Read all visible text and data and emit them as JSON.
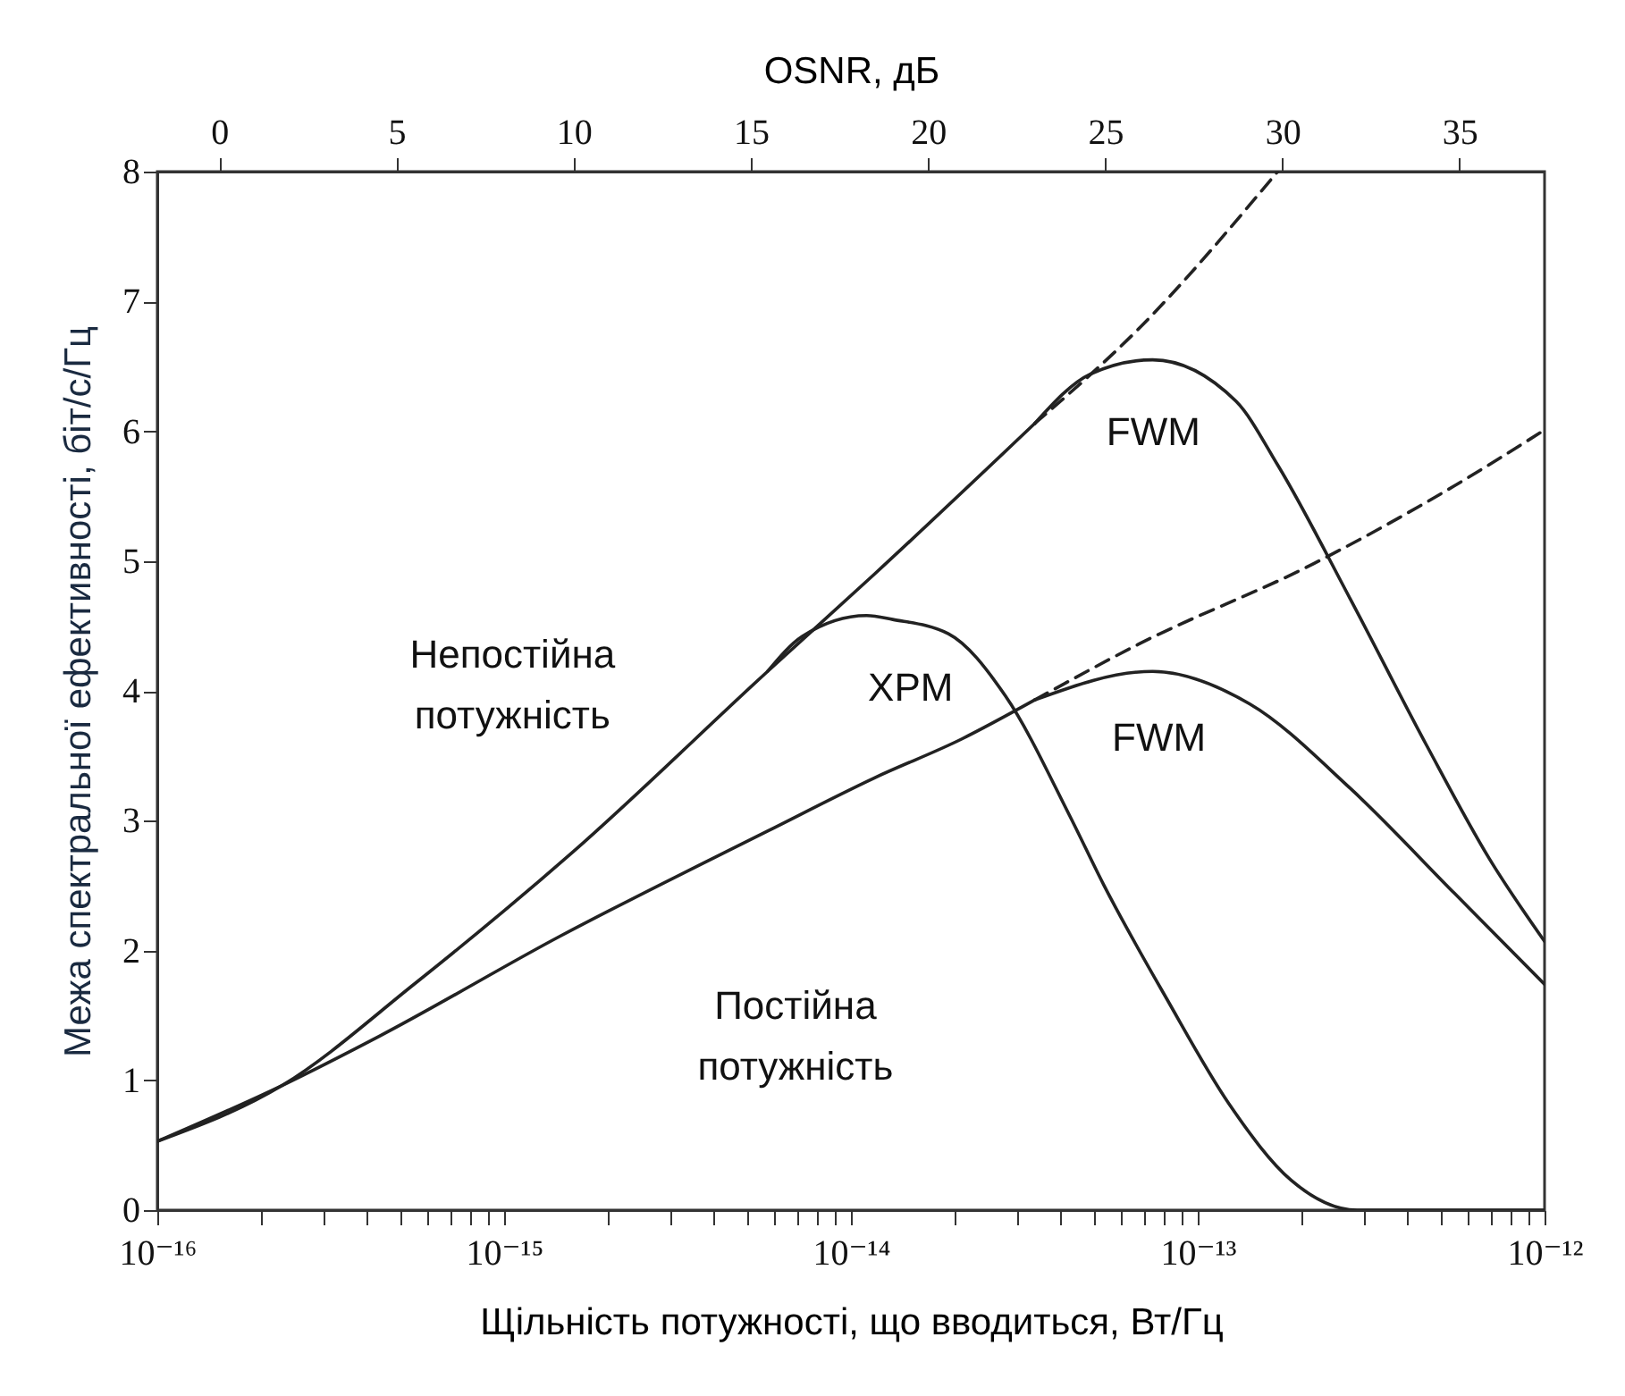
{
  "chart_data": {
    "type": "line",
    "xlabel": "Щільність потужності, що вводиться, Вт/Гц",
    "ylabel": "Межа спектральної ефективності, біт/с/Гц",
    "x2label": "OSNR, дБ",
    "log": "x",
    "xlim": [
      1e-16,
      1e-12
    ],
    "ylim": [
      0,
      8
    ],
    "x2lim": [
      -1.75,
      37.4
    ],
    "xticks": [
      {
        "value": 1e-16,
        "label": "10⁻¹⁶"
      },
      {
        "value": 2e-16,
        "label": null
      },
      {
        "value": 3e-16,
        "label": null
      },
      {
        "value": 4e-16,
        "label": null
      },
      {
        "value": 5e-16,
        "label": null
      },
      {
        "value": 6e-16,
        "label": null
      },
      {
        "value": 7e-16,
        "label": null
      },
      {
        "value": 8e-16,
        "label": null
      },
      {
        "value": 9e-16,
        "label": null
      },
      {
        "value": 1e-15,
        "label": "10⁻¹⁵"
      },
      {
        "value": 2e-15,
        "label": null
      },
      {
        "value": 3e-15,
        "label": null
      },
      {
        "value": 4e-15,
        "label": null
      },
      {
        "value": 5e-15,
        "label": null
      },
      {
        "value": 6e-15,
        "label": null
      },
      {
        "value": 7e-15,
        "label": null
      },
      {
        "value": 8e-15,
        "label": null
      },
      {
        "value": 9e-15,
        "label": null
      },
      {
        "value": 1e-14,
        "label": "10⁻¹⁴"
      },
      {
        "value": 2e-14,
        "label": null
      },
      {
        "value": 3e-14,
        "label": null
      },
      {
        "value": 4e-14,
        "label": null
      },
      {
        "value": 5e-14,
        "label": null
      },
      {
        "value": 6e-14,
        "label": null
      },
      {
        "value": 7e-14,
        "label": null
      },
      {
        "value": 8e-14,
        "label": null
      },
      {
        "value": 9e-14,
        "label": null
      },
      {
        "value": 1e-13,
        "label": "10⁻¹³"
      },
      {
        "value": 2e-13,
        "label": null
      },
      {
        "value": 3e-13,
        "label": null
      },
      {
        "value": 4e-13,
        "label": null
      },
      {
        "value": 5e-13,
        "label": null
      },
      {
        "value": 6e-13,
        "label": null
      },
      {
        "value": 7e-13,
        "label": null
      },
      {
        "value": 8e-13,
        "label": null
      },
      {
        "value": 9e-13,
        "label": null
      },
      {
        "value": 1e-12,
        "label": "10⁻¹²"
      }
    ],
    "yticks": [
      0,
      1,
      2,
      3,
      4,
      5,
      6,
      7,
      8
    ],
    "x2ticks": [
      0,
      5,
      10,
      15,
      20,
      25,
      30,
      35
    ],
    "grid": false,
    "marker": "none",
    "series": [
      {
        "color": "#222222",
        "line_style": "solid",
        "x": [
          1e-16,
          2.29e-16,
          5.5e-16,
          1.58e-15,
          5.75e-15,
          1.17e-14,
          3.39e-14
        ],
        "values": [
          0.53,
          0.96,
          1.74,
          2.76,
          4.15,
          4.9,
          6.06
        ]
      },
      {
        "color": "#222222",
        "line_style": "dashed",
        "x": [
          3.39e-14,
          6.76e-14,
          1.7e-13
        ],
        "values": [
          6.06,
          6.79,
          8
        ]
      },
      {
        "color": "#222222",
        "line_style": "solid",
        "x": [
          3.39e-14,
          4.9e-14,
          7.41e-14,
          1.29e-13,
          1.7e-13,
          2.75e-13,
          4.57e-13,
          6.92e-13,
          1e-12
        ],
        "values": [
          6.06,
          6.44,
          6.55,
          6.23,
          5.74,
          4.71,
          3.58,
          2.71,
          2.07
        ]
      },
      {
        "color": "#222222",
        "line_style": "solid",
        "x": [
          5.75e-15,
          7.24e-15,
          1.11e-14,
          1.32e-14,
          1.91e-14,
          2.79e-14,
          4.27e-14,
          5.37e-14,
          8.13e-14,
          1.23e-13,
          1.86e-13,
          2.88e-13,
          1e-12
        ],
        "values": [
          4.15,
          4.42,
          4.58,
          4.55,
          4.44,
          3.96,
          3.04,
          2.5,
          1.63,
          0.82,
          0.23,
          0,
          0
        ]
      },
      {
        "color": "#222222",
        "line_style": "solid",
        "x": [
          1e-16,
          2.29e-16,
          4.37e-16,
          1.45e-15,
          5.75e-15,
          1.17e-14,
          2.09e-14,
          3.39e-14
        ],
        "values": [
          0.53,
          0.96,
          1.34,
          2.11,
          2.92,
          3.33,
          3.63,
          3.93
        ]
      },
      {
        "color": "#222222",
        "line_style": "dashed",
        "x": [
          3.39e-14,
          6.76e-14,
          2.16e-13,
          5.5e-13,
          1e-12
        ],
        "values": [
          3.93,
          4.36,
          4.98,
          5.58,
          6.01
        ]
      },
      {
        "color": "#222222",
        "line_style": "solid",
        "x": [
          3.39e-14,
          7.41e-14,
          1.41e-13,
          2.75e-13,
          5.5e-13,
          1e-12
        ],
        "values": [
          3.93,
          4.15,
          3.9,
          3.25,
          2.44,
          1.74
        ]
      }
    ],
    "annotations": [
      "Непостійна потужність",
      "XPM",
      "FWM",
      "FWM",
      "Постійна потужність"
    ]
  }
}
